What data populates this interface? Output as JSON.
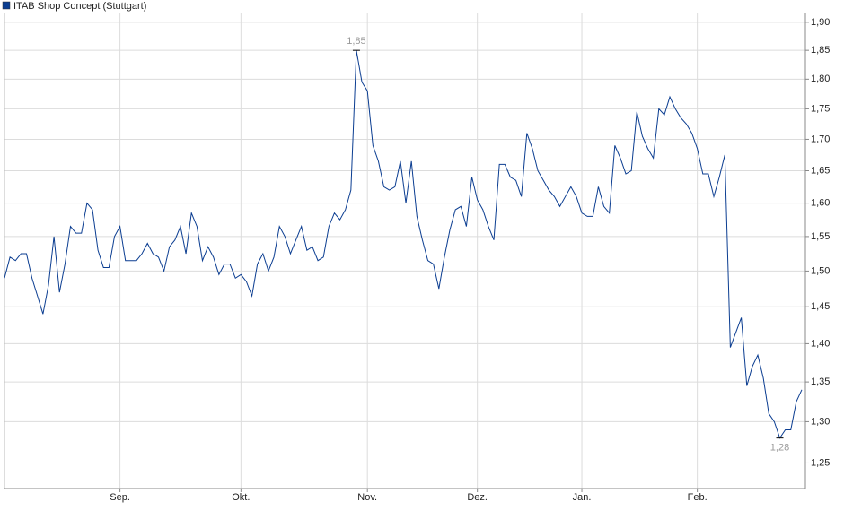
{
  "chart_data": {
    "type": "line",
    "legend": "top-left",
    "grid": true,
    "log_y": true,
    "categories": [
      null,
      null,
      null,
      null,
      null,
      null,
      null,
      null,
      null,
      null,
      null,
      null,
      null,
      null,
      null,
      null,
      null,
      null,
      null,
      null,
      null,
      "Sep.",
      null,
      null,
      null,
      null,
      null,
      null,
      null,
      null,
      null,
      null,
      null,
      null,
      null,
      null,
      null,
      null,
      null,
      null,
      null,
      null,
      null,
      "Okt.",
      null,
      null,
      null,
      null,
      null,
      null,
      null,
      null,
      null,
      null,
      null,
      null,
      null,
      null,
      null,
      null,
      null,
      null,
      null,
      null,
      null,
      null,
      "Nov.",
      null,
      null,
      null,
      null,
      null,
      null,
      null,
      null,
      null,
      null,
      null,
      null,
      null,
      null,
      null,
      null,
      null,
      null,
      null,
      "Dez.",
      null,
      null,
      null,
      null,
      null,
      null,
      null,
      null,
      null,
      null,
      null,
      null,
      null,
      null,
      null,
      null,
      null,
      null,
      "Jan.",
      null,
      null,
      null,
      null,
      null,
      null,
      null,
      null,
      null,
      null,
      null,
      null,
      null,
      null,
      null,
      null,
      null,
      null,
      null,
      null,
      "Feb.",
      null,
      null,
      null,
      null,
      null,
      null,
      null,
      null,
      null,
      null,
      null,
      null,
      null,
      null,
      null,
      null,
      null,
      null,
      null
    ],
    "series": [
      {
        "name": "ITAB Shop Concept (Stuttgart)",
        "color": "#0b3d91",
        "values": [
          1.49,
          1.52,
          1.515,
          1.525,
          1.525,
          1.49,
          1.465,
          1.44,
          1.48,
          1.55,
          1.47,
          1.51,
          1.565,
          1.555,
          1.555,
          1.6,
          1.59,
          1.53,
          1.505,
          1.505,
          1.55,
          1.565,
          1.515,
          1.515,
          1.515,
          1.525,
          1.54,
          1.525,
          1.52,
          1.5,
          1.535,
          1.545,
          1.565,
          1.525,
          1.585,
          1.565,
          1.515,
          1.535,
          1.52,
          1.495,
          1.51,
          1.51,
          1.49,
          1.495,
          1.485,
          1.465,
          1.51,
          1.525,
          1.5,
          1.52,
          1.565,
          1.55,
          1.525,
          1.545,
          1.565,
          1.53,
          1.535,
          1.515,
          1.52,
          1.565,
          1.585,
          1.575,
          1.59,
          1.62,
          1.85,
          1.795,
          1.78,
          1.69,
          1.665,
          1.625,
          1.62,
          1.625,
          1.665,
          1.6,
          1.665,
          1.58,
          1.545,
          1.515,
          1.51,
          1.475,
          1.52,
          1.56,
          1.59,
          1.595,
          1.565,
          1.64,
          1.605,
          1.59,
          1.565,
          1.545,
          1.66,
          1.66,
          1.64,
          1.635,
          1.61,
          1.71,
          1.685,
          1.65,
          1.635,
          1.62,
          1.61,
          1.595,
          1.61,
          1.625,
          1.61,
          1.585,
          1.58,
          1.58,
          1.625,
          1.595,
          1.585,
          1.69,
          1.67,
          1.645,
          1.65,
          1.745,
          1.705,
          1.685,
          1.67,
          1.75,
          1.74,
          1.77,
          1.75,
          1.735,
          1.725,
          1.71,
          1.685,
          1.645,
          1.645,
          1.61,
          1.64,
          1.675,
          1.395,
          1.415,
          1.435,
          1.345,
          1.37,
          1.385,
          1.355,
          1.31,
          1.3,
          1.28,
          1.29,
          1.29,
          1.325,
          1.34
        ],
        "value_labels": [
          null,
          null,
          null,
          null,
          null,
          null,
          null,
          null,
          null,
          null,
          null,
          null,
          null,
          null,
          null,
          null,
          null,
          null,
          null,
          null,
          null,
          null,
          null,
          null,
          null,
          null,
          null,
          null,
          null,
          null,
          null,
          null,
          null,
          null,
          null,
          null,
          null,
          null,
          null,
          null,
          null,
          null,
          null,
          null,
          null,
          null,
          null,
          null,
          null,
          null,
          null,
          null,
          null,
          null,
          null,
          null,
          null,
          null,
          null,
          null,
          null,
          null,
          null,
          null,
          "1,85",
          null,
          null,
          null,
          null,
          null,
          null,
          null,
          null,
          null,
          null,
          null,
          null,
          null,
          null,
          null,
          null,
          null,
          null,
          null,
          null,
          null,
          null,
          null,
          null,
          null,
          null,
          null,
          null,
          null,
          null,
          null,
          null,
          null,
          null,
          null,
          null,
          null,
          null,
          null,
          null,
          null,
          null,
          null,
          null,
          null,
          null,
          null,
          null,
          null,
          null,
          null,
          null,
          null,
          null,
          null,
          null,
          null,
          null,
          null,
          null,
          null,
          null,
          null,
          null,
          null,
          null,
          null,
          null,
          null,
          null,
          null,
          null,
          null,
          null,
          null,
          null,
          "1,28",
          null,
          null,
          null,
          null
        ]
      }
    ],
    "ylim": [
      1.22,
      1.916
    ],
    "yticks": [
      {
        "value": 1.25,
        "label": "1,25"
      },
      {
        "value": 1.3,
        "label": "1,30"
      },
      {
        "value": 1.35,
        "label": "1,35"
      },
      {
        "value": 1.4,
        "label": "1,40"
      },
      {
        "value": 1.45,
        "label": "1,45"
      },
      {
        "value": 1.5,
        "label": "1,50"
      },
      {
        "value": 1.55,
        "label": "1,55"
      },
      {
        "value": 1.6,
        "label": "1,60"
      },
      {
        "value": 1.65,
        "label": "1,65"
      },
      {
        "value": 1.7,
        "label": "1,70"
      },
      {
        "value": 1.75,
        "label": "1,75"
      },
      {
        "value": 1.8,
        "label": "1,80"
      },
      {
        "value": 1.85,
        "label": "1,85"
      },
      {
        "value": 1.9,
        "label": "1,90"
      }
    ]
  }
}
